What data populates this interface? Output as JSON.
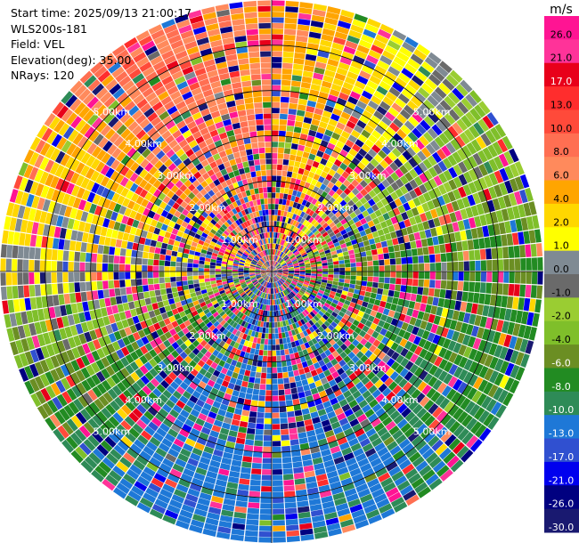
{
  "info": {
    "start_time": "Start time: 2025/09/13 21:00:17",
    "instrument": "WLS200s-181",
    "field": "Field: VEL",
    "elevation": "Elevation(deg): 35.00",
    "nrays": "NRays: 120"
  },
  "chart_data": {
    "type": "heatmap",
    "projection": "polar-ppi",
    "field": "VEL",
    "units": "m/s",
    "n_rays": 120,
    "range_max_km": 6.0,
    "range_rings_km": [
      1.0,
      2.0,
      3.0,
      4.0,
      5.0
    ],
    "ring_labels": [
      "1.00km",
      "2.00km",
      "3.00km",
      "4.00km",
      "5.00km"
    ],
    "colorbar": {
      "unit_label": "m/s",
      "range": [
        -30.0,
        30.0
      ],
      "tick_labels": [
        "26.0",
        "21.0",
        "17.0",
        "13.0",
        "10.0",
        "8.0",
        "6.0",
        "4.0",
        "2.0",
        "1.0",
        "0.0",
        "-1.0",
        "-2.0",
        "-4.0",
        "-6.0",
        "-8.0",
        "-10.0",
        "-13.0",
        "-17.0",
        "-21.0",
        "-26.0",
        "-30.0"
      ],
      "bins": [
        {
          "low": 26.0,
          "high": 30.0,
          "color": "#ff1493"
        },
        {
          "low": 21.0,
          "high": 26.0,
          "color": "#ff3399"
        },
        {
          "low": 17.0,
          "high": 21.0,
          "color": "#e8001a"
        },
        {
          "low": 13.0,
          "high": 17.0,
          "color": "#ff2d2d"
        },
        {
          "low": 10.0,
          "high": 13.0,
          "color": "#ff4a3a"
        },
        {
          "low": 8.0,
          "high": 10.0,
          "color": "#ff6f52"
        },
        {
          "low": 6.0,
          "high": 8.0,
          "color": "#ff8a5c"
        },
        {
          "low": 4.0,
          "high": 6.0,
          "color": "#ffa500"
        },
        {
          "low": 2.0,
          "high": 4.0,
          "color": "#ffd700"
        },
        {
          "low": 1.0,
          "high": 2.0,
          "color": "#ffff00"
        },
        {
          "low": 0.0,
          "high": 1.0,
          "color": "#7f8a93"
        },
        {
          "low": -1.0,
          "high": 0.0,
          "color": "#6a6a6a"
        },
        {
          "low": -2.0,
          "high": -1.0,
          "color": "#9acd32"
        },
        {
          "low": -4.0,
          "high": -2.0,
          "color": "#7fbf2a"
        },
        {
          "low": -6.0,
          "high": -4.0,
          "color": "#6b8e23"
        },
        {
          "low": -8.0,
          "high": -6.0,
          "color": "#228b22"
        },
        {
          "low": -10.0,
          "high": -8.0,
          "color": "#2e8b57"
        },
        {
          "low": -13.0,
          "high": -10.0,
          "color": "#1e78d7"
        },
        {
          "low": -17.0,
          "high": -13.0,
          "color": "#3050d0"
        },
        {
          "low": -21.0,
          "high": -17.0,
          "color": "#0000ee"
        },
        {
          "low": -26.0,
          "high": -21.0,
          "color": "#000080"
        },
        {
          "low": -30.0,
          "high": -26.0,
          "color": "#191970"
        }
      ]
    },
    "velocity_pattern": {
      "description": "Dominant radial velocity by azimuth (deg clockwise from north) at outer ranges; inner ranges are noisy",
      "azimuth_deg": [
        0,
        30,
        60,
        90,
        120,
        150,
        180,
        210,
        240,
        270,
        300,
        330
      ],
      "outer_velocity_ms": [
        6.0,
        2.0,
        -2.0,
        -6.0,
        -8.0,
        -10.0,
        -12.0,
        -11.0,
        -6.0,
        1.0,
        4.0,
        9.0
      ],
      "noise_radius_km": 2.2
    }
  }
}
